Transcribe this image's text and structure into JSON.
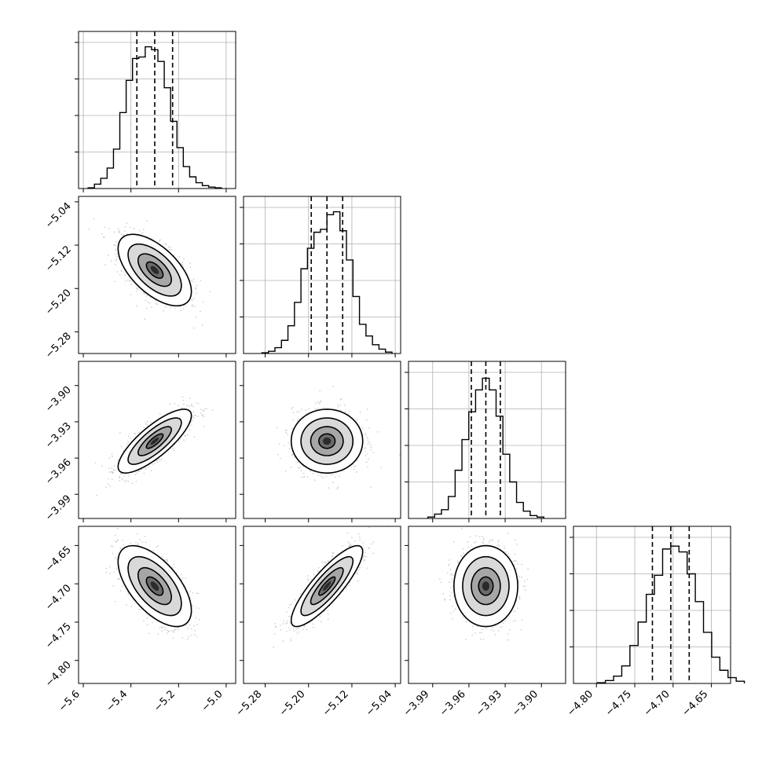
{
  "chart_data": {
    "type": "corner",
    "parameters": [
      {
        "ticks": [
          "−5.6",
          "−5.4",
          "−5.2",
          "−5.0"
        ],
        "tick_values": [
          -5.6,
          -5.4,
          -5.2,
          -5.0
        ],
        "range": [
          -5.62,
          -4.96
        ],
        "mean": -5.3,
        "std": 0.07,
        "quantiles": [
          -5.375,
          -5.3,
          -5.225
        ],
        "hist": [
          0.005,
          0.03,
          0.07,
          0.14,
          0.27,
          0.52,
          0.74,
          0.89,
          0.9,
          0.97,
          0.95,
          0.87,
          0.69,
          0.46,
          0.28,
          0.15,
          0.08,
          0.04,
          0.02,
          0.01,
          0.005
        ]
      },
      {
        "ticks": [
          "−5.28",
          "−5.20",
          "−5.12",
          "−5.04"
        ],
        "tick_values": [
          -5.28,
          -5.2,
          -5.12,
          -5.04
        ],
        "range": [
          -5.32,
          -5.03
        ],
        "mean": -5.166,
        "std": 0.03,
        "quantiles": [
          -5.195,
          -5.166,
          -5.137
        ],
        "hist": [
          0.005,
          0.015,
          0.04,
          0.09,
          0.19,
          0.35,
          0.58,
          0.72,
          0.83,
          0.85,
          0.95,
          0.97,
          0.84,
          0.64,
          0.39,
          0.2,
          0.12,
          0.06,
          0.03,
          0.01
        ]
      },
      {
        "ticks": [
          "−3.99",
          "−3.96",
          "−3.93",
          "−3.90"
        ],
        "tick_values": [
          -3.99,
          -3.96,
          -3.93,
          -3.9
        ],
        "range": [
          -4.01,
          -3.88
        ],
        "mean": -3.946,
        "std": 0.012,
        "quantiles": [
          -3.958,
          -3.946,
          -3.934
        ],
        "hist": [
          0.01,
          0.03,
          0.06,
          0.15,
          0.33,
          0.54,
          0.73,
          0.88,
          0.96,
          0.88,
          0.7,
          0.44,
          0.25,
          0.11,
          0.05,
          0.02,
          0.01
        ]
      },
      {
        "ticks": [
          "−4.80",
          "−4.75",
          "−4.70",
          "−4.65"
        ],
        "tick_values": [
          -4.8,
          -4.75,
          -4.7,
          -4.65
        ],
        "range": [
          -4.83,
          -4.625
        ],
        "mean": -4.703,
        "std": 0.024,
        "quantiles": [
          -4.727,
          -4.703,
          -4.679
        ],
        "hist": [
          0.005,
          0.02,
          0.05,
          0.12,
          0.26,
          0.42,
          0.61,
          0.74,
          0.92,
          0.94,
          0.9,
          0.75,
          0.56,
          0.35,
          0.18,
          0.09,
          0.04,
          0.015
        ]
      }
    ],
    "correlations": [
      [
        0,
        1,
        -0.6
      ],
      [
        0,
        2,
        0.8
      ],
      [
        1,
        2,
        0.0
      ],
      [
        0,
        3,
        -0.6
      ],
      [
        1,
        3,
        0.85
      ],
      [
        2,
        3,
        0.0
      ]
    ],
    "contour_levels": [
      0.5,
      1.0,
      1.6,
      2.2
    ],
    "colors": {
      "line": "#000000",
      "grid": "#b0b0b0",
      "points": "#9e9e9e"
    }
  }
}
